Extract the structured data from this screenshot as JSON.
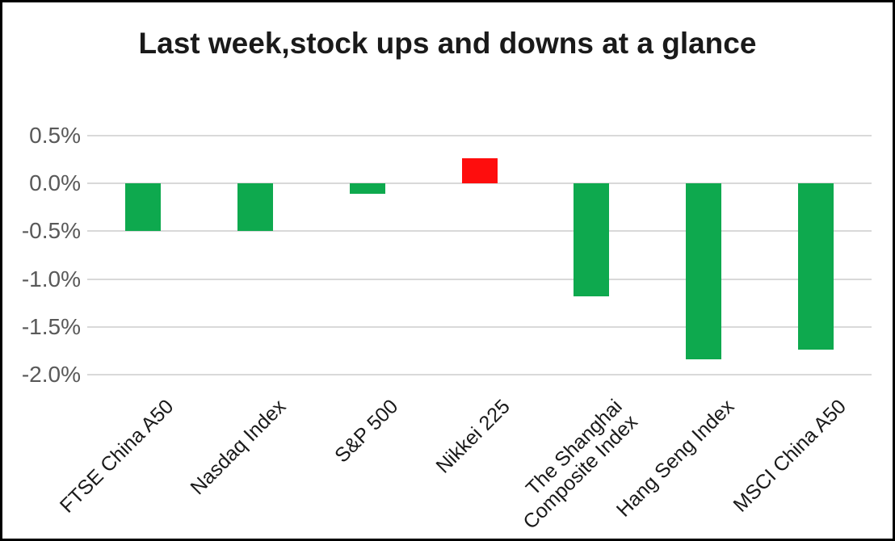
{
  "chart_data": {
    "type": "bar",
    "title": "Last week,stock ups and downs at a glance",
    "categories": [
      "FTSE China A50",
      "Nasdaq Index",
      "S&P 500",
      "Nikkei 225",
      "The Shanghai\nComposite Index",
      "Hang Seng Index",
      "MSCI China A50"
    ],
    "values": [
      -0.5,
      -0.5,
      -0.11,
      0.26,
      -1.18,
      -1.84,
      -1.74
    ],
    "unit": "percent",
    "xlabel": "",
    "ylabel": "",
    "y_tick_labels": [
      "0.5%",
      "0.0%",
      "-0.5%",
      "-1.0%",
      "-1.5%",
      "-2.0%"
    ],
    "y_tick_values": [
      0.5,
      0.0,
      -0.5,
      -1.0,
      -1.5,
      -2.0
    ],
    "ylim": [
      -2.0,
      0.5
    ],
    "grid": true,
    "legend": false,
    "colors": {
      "positive_bar": "#fe0d0d",
      "negative_bar": "#0ea94e",
      "gridline": "#d9d9d9",
      "y_tick_label": "#595959",
      "x_tick_label": "#1a1a1a",
      "title": "#1a1a1a",
      "background": "#ffffff",
      "frame_border": "#000000"
    }
  }
}
